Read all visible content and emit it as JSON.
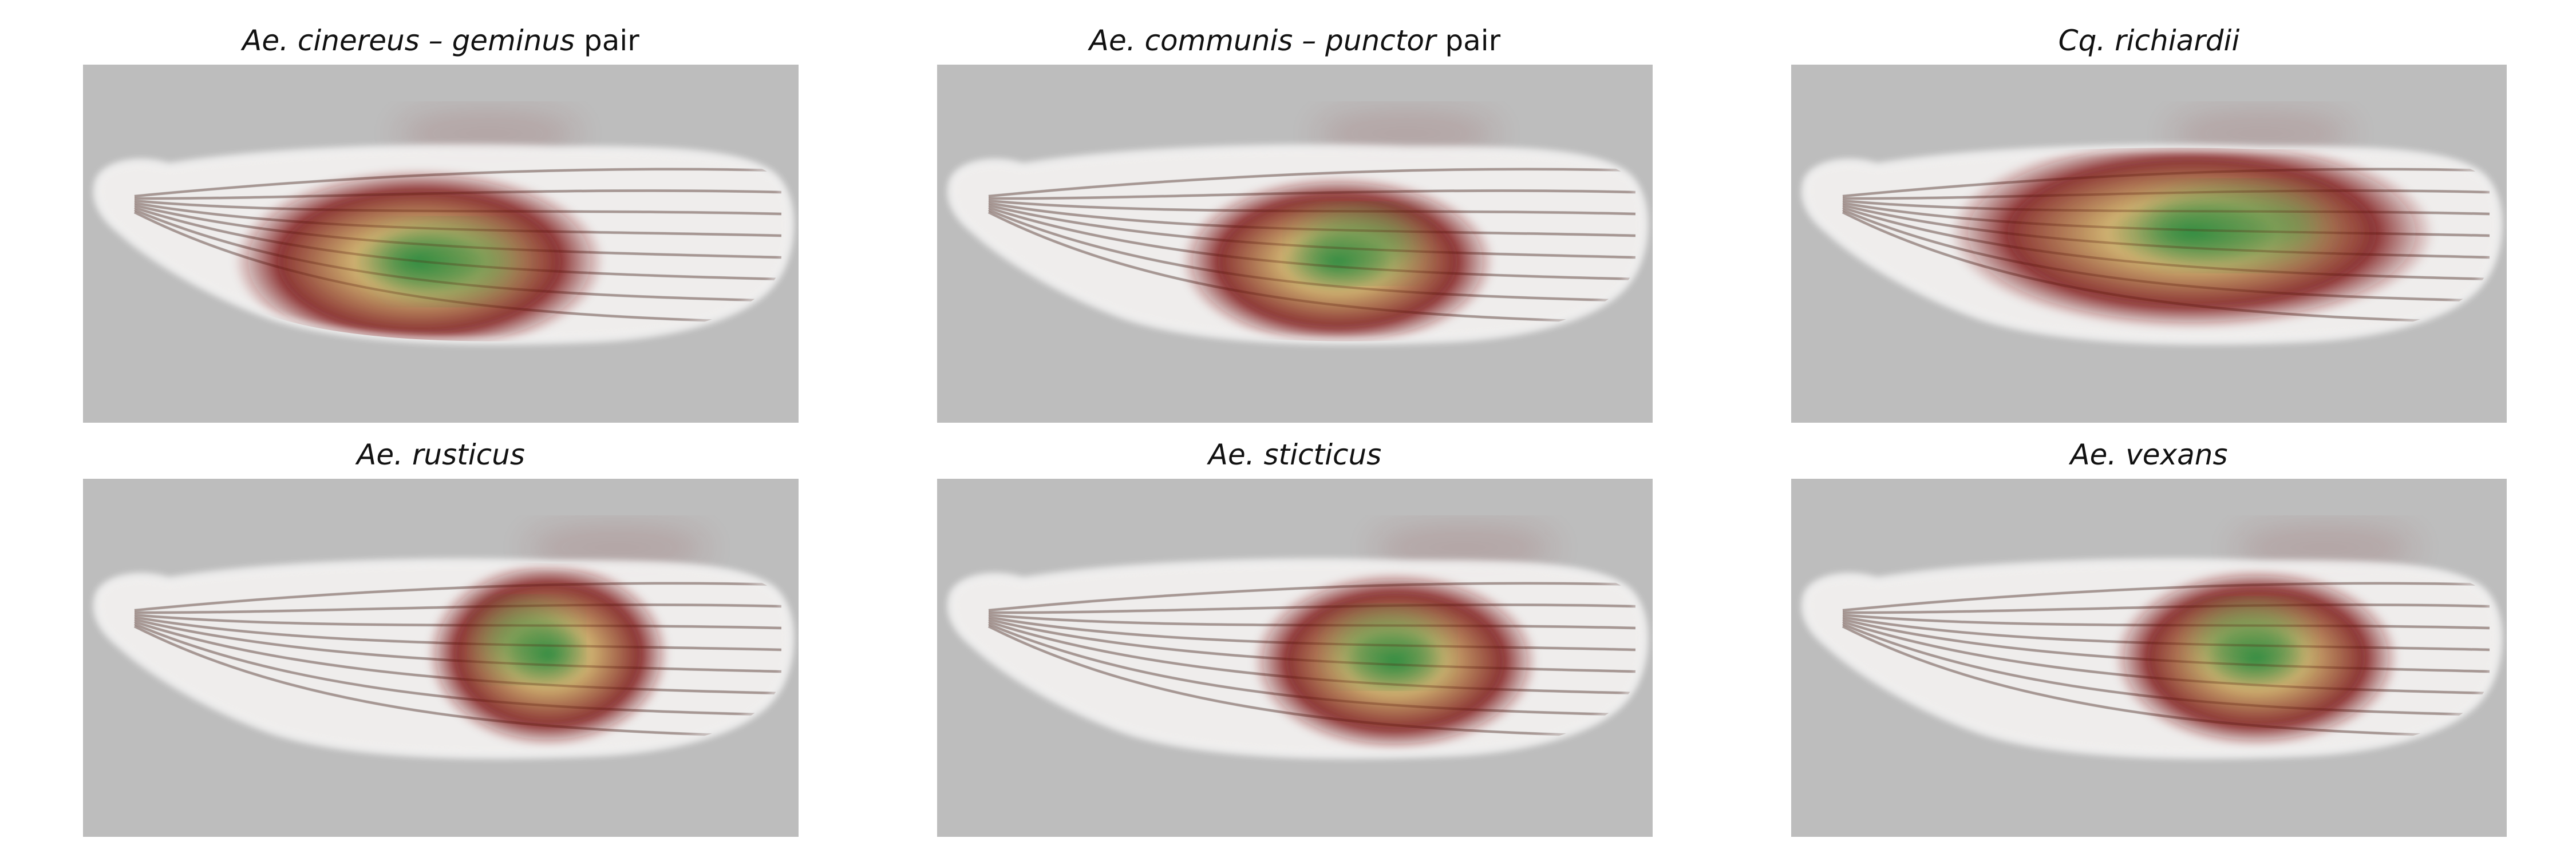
{
  "figure": {
    "panels": [
      {
        "id": "cinereus-geminus",
        "species_italic": "Ae. cinereus – geminus",
        "suffix": " pair",
        "heat_center": [
          0.47,
          0.55
        ],
        "heat_size": [
          0.26,
          0.26
        ],
        "peak": [
          0.51,
          0.55
        ]
      },
      {
        "id": "communis-punctor",
        "species_italic": "Ae. communis – punctor",
        "suffix": " pair",
        "heat_center": [
          0.56,
          0.55
        ],
        "heat_size": [
          0.22,
          0.24
        ],
        "peak": [
          0.59,
          0.5
        ]
      },
      {
        "id": "richiardii",
        "species_italic": "Cq. richiardii",
        "suffix": "",
        "heat_center": [
          0.56,
          0.47
        ],
        "heat_size": [
          0.34,
          0.27
        ],
        "peak": [
          0.62,
          0.45
        ]
      },
      {
        "id": "rusticus",
        "species_italic": "Ae. rusticus",
        "suffix": "",
        "heat_center": [
          0.65,
          0.49
        ],
        "heat_size": [
          0.17,
          0.26
        ],
        "peak": [
          0.62,
          0.45
        ]
      },
      {
        "id": "sticticus",
        "species_italic": "Ae. sticticus",
        "suffix": "",
        "heat_center": [
          0.64,
          0.51
        ],
        "heat_size": [
          0.2,
          0.25
        ],
        "peak": [
          0.63,
          0.47
        ]
      },
      {
        "id": "vexans",
        "species_italic": "Ae. vexans",
        "suffix": "",
        "heat_center": [
          0.65,
          0.5
        ],
        "heat_size": [
          0.2,
          0.25
        ],
        "peak": [
          0.64,
          0.45
        ]
      }
    ],
    "colors": {
      "background": "#bdbdbd",
      "wing": "#f2f0ef",
      "heat_outer": "#7a1414",
      "heat_mid": "#c8a55a",
      "heat_inner": "#2e8b3e"
    }
  }
}
